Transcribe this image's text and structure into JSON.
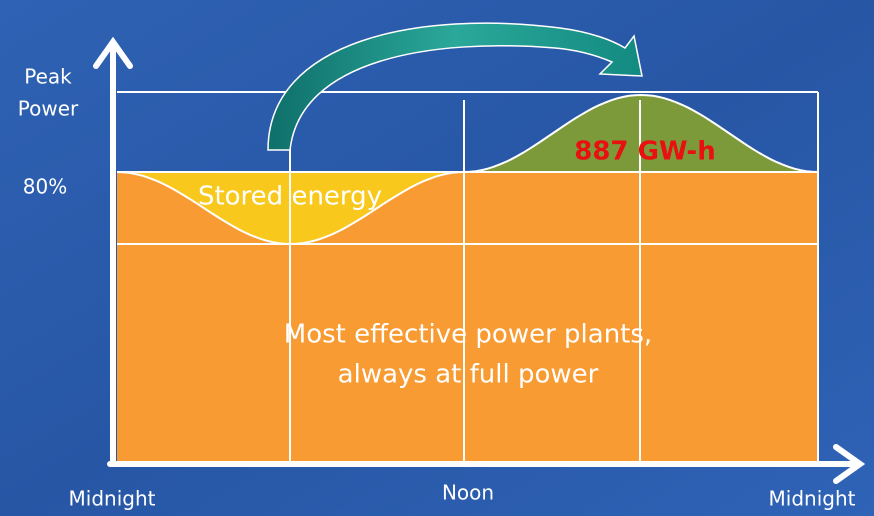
{
  "axis_labels": {
    "peak": [
      "Peak",
      "Power"
    ],
    "level": "80%",
    "x": [
      "Midnight",
      "Noon",
      "Midnight"
    ]
  },
  "regions": {
    "stored": "Stored energy",
    "surplus": "887 GW-h",
    "base": [
      "Most effective power plants,",
      "always at full power"
    ]
  }
}
